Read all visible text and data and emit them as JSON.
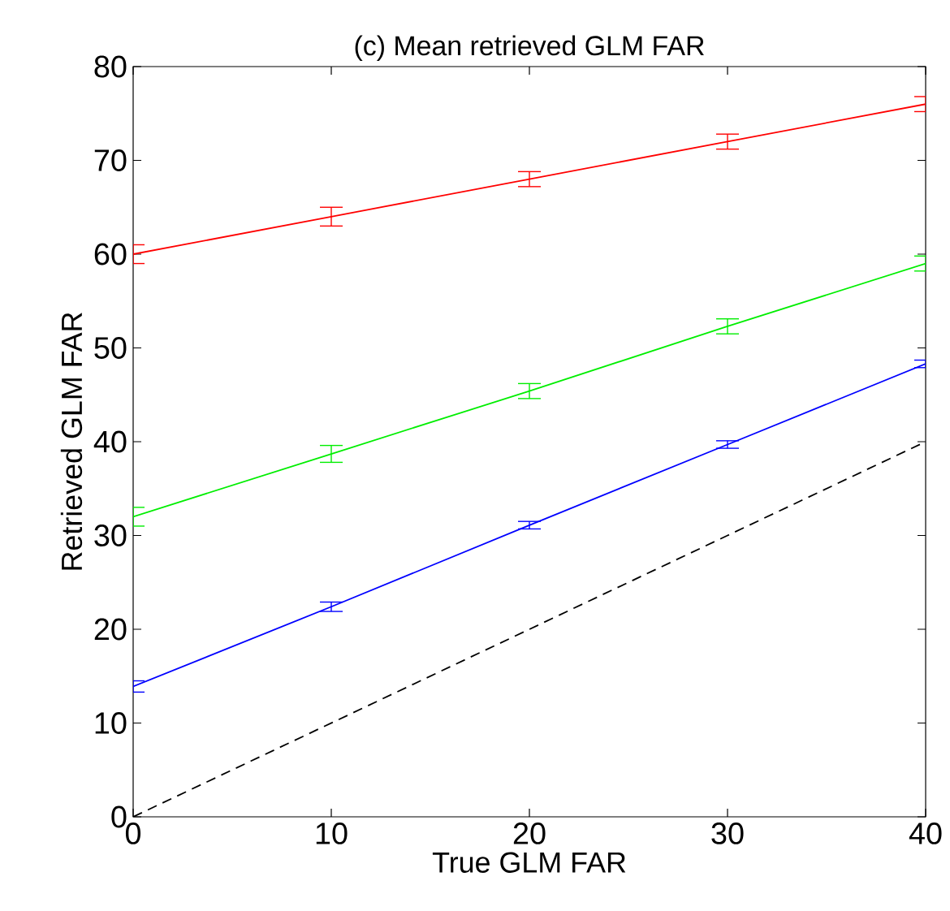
{
  "chart_data": {
    "type": "line",
    "title": "(c) Mean retrieved GLM FAR",
    "xlabel": "True GLM FAR",
    "ylabel": "Retrieved GLM FAR",
    "x": [
      0,
      10,
      20,
      30,
      40
    ],
    "series": [
      {
        "color": "#ff0000",
        "values": [
          60.0,
          64.0,
          68.0,
          72.0,
          76.0
        ],
        "errors": [
          1.0,
          1.0,
          0.8,
          0.8,
          0.8
        ]
      },
      {
        "color": "#00ee00",
        "values": [
          32.0,
          38.7,
          45.4,
          52.3,
          59.0
        ],
        "errors": [
          1.0,
          0.9,
          0.8,
          0.8,
          0.8
        ]
      },
      {
        "color": "#0000ff",
        "values": [
          13.9,
          22.4,
          31.1,
          39.7,
          48.3
        ],
        "errors": [
          0.6,
          0.5,
          0.4,
          0.4,
          0.4
        ]
      },
      {
        "color": "#000000",
        "values": [
          0,
          10,
          20,
          30,
          40
        ],
        "line_style": "dashed"
      }
    ],
    "xlim": [
      0,
      40
    ],
    "ylim": [
      0,
      80
    ],
    "xticks": [
      0,
      10,
      20,
      30,
      40
    ],
    "yticks": [
      0,
      10,
      20,
      30,
      40,
      50,
      60,
      70,
      80
    ],
    "grid": false
  }
}
